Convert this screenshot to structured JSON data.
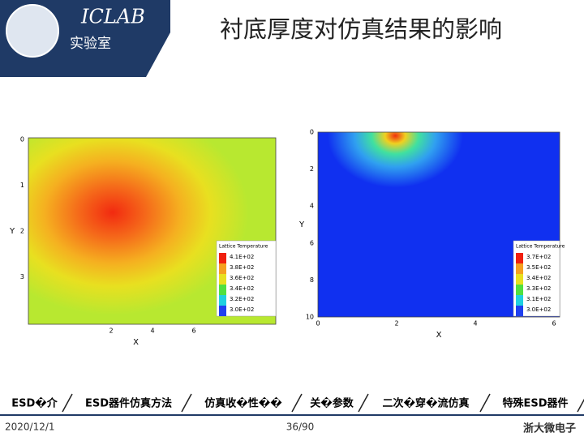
{
  "header": {
    "lab": "ICLAB",
    "lab_sub": "实验室",
    "title": "衬底厚度对仿真结果的影响"
  },
  "plots": [
    {
      "x_label": "X",
      "y_label": "Y",
      "xticks": [
        "2",
        "4",
        "6"
      ],
      "yticks": [
        "0",
        "1",
        "2",
        "3"
      ],
      "legend_title": "Lattice Temperature",
      "legend": [
        "4.1E+02",
        "3.8E+02",
        "3.6E+02",
        "3.4E+02",
        "3.2E+02",
        "3.0E+02"
      ]
    },
    {
      "x_label": "X",
      "y_label": "Y",
      "xticks": [
        "0",
        "2",
        "4",
        "6"
      ],
      "yticks": [
        "0",
        "2",
        "4",
        "6",
        "8",
        "10"
      ],
      "legend_title": "Lattice Temperature",
      "legend": [
        "3.7E+02",
        "3.5E+02",
        "3.4E+02",
        "3.3E+02",
        "3.1E+02",
        "3.0E+02"
      ]
    }
  ],
  "nav": [
    "ESD�介",
    "ESD器件仿真方法",
    "仿真收�性��",
    "关�参数",
    "二次�穿�流仿真",
    "特殊ESD器件"
  ],
  "footer": {
    "date": "2020/12/1",
    "page": "36/90",
    "org": "浙大微电子"
  }
}
